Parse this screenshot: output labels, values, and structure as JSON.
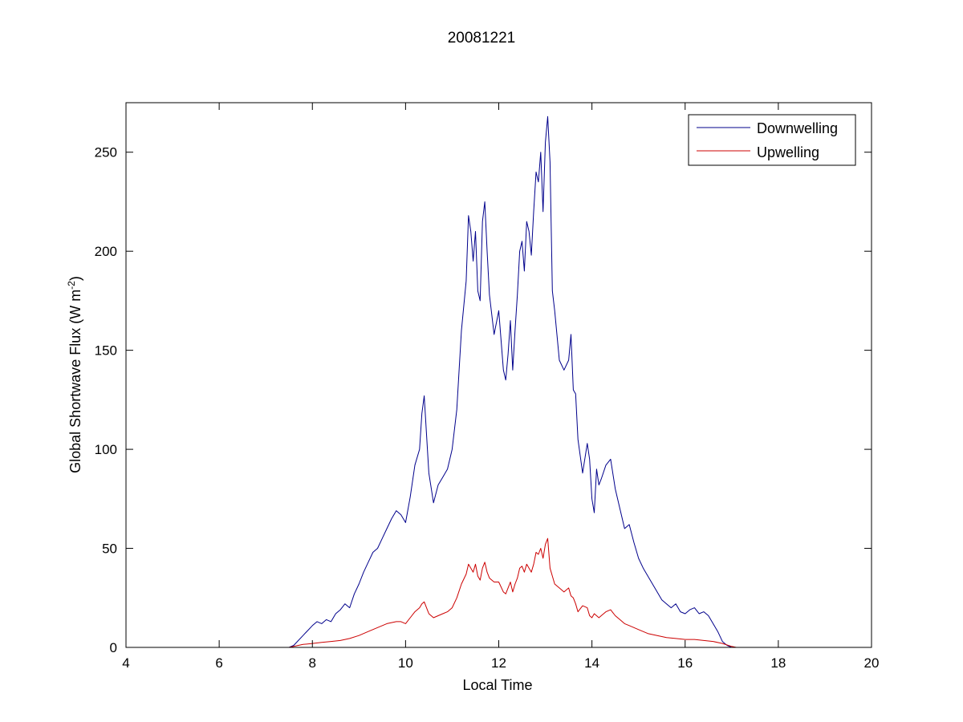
{
  "chart_data": {
    "type": "line",
    "title": "20081221",
    "xlabel": "Local Time",
    "ylabel": {
      "main": "Global Shortwave Flux (W m",
      "sup": "-2",
      "close": ")"
    },
    "xlim": [
      4,
      20
    ],
    "ylim": [
      0,
      275
    ],
    "xticks": [
      4,
      6,
      8,
      10,
      12,
      14,
      16,
      18,
      20
    ],
    "yticks": [
      0,
      50,
      100,
      150,
      200,
      250
    ],
    "grid": false,
    "legend_position": "top-right",
    "series": [
      {
        "name": "Downwelling",
        "color": "#00008b",
        "x": [
          4.0,
          7.3,
          7.5,
          7.6,
          7.8,
          8.0,
          8.1,
          8.2,
          8.3,
          8.4,
          8.5,
          8.6,
          8.7,
          8.8,
          8.9,
          9.0,
          9.1,
          9.2,
          9.3,
          9.4,
          9.5,
          9.6,
          9.7,
          9.8,
          9.9,
          10.0,
          10.1,
          10.2,
          10.3,
          10.35,
          10.4,
          10.5,
          10.6,
          10.7,
          10.8,
          10.9,
          11.0,
          11.1,
          11.2,
          11.3,
          11.35,
          11.4,
          11.45,
          11.5,
          11.55,
          11.6,
          11.65,
          11.7,
          11.75,
          11.8,
          11.9,
          12.0,
          12.1,
          12.15,
          12.2,
          12.25,
          12.3,
          12.35,
          12.4,
          12.45,
          12.5,
          12.55,
          12.6,
          12.65,
          12.7,
          12.75,
          12.8,
          12.85,
          12.9,
          12.95,
          13.0,
          13.05,
          13.1,
          13.15,
          13.2,
          13.3,
          13.4,
          13.5,
          13.55,
          13.6,
          13.65,
          13.7,
          13.8,
          13.9,
          13.95,
          14.0,
          14.05,
          14.1,
          14.15,
          14.2,
          14.3,
          14.4,
          14.5,
          14.6,
          14.7,
          14.8,
          14.9,
          15.0,
          15.1,
          15.2,
          15.3,
          15.4,
          15.5,
          15.6,
          15.7,
          15.8,
          15.9,
          16.0,
          16.1,
          16.2,
          16.3,
          16.4,
          16.5,
          16.6,
          16.7,
          16.8,
          16.9,
          17.0,
          17.1,
          19.5
        ],
        "y": [
          0,
          0,
          0,
          1,
          6,
          11,
          13,
          12,
          14,
          13,
          17,
          19,
          22,
          20,
          27,
          32,
          38,
          43,
          48,
          50,
          55,
          60,
          65,
          69,
          67,
          63,
          76,
          92,
          100,
          118,
          127,
          88,
          73,
          82,
          86,
          90,
          100,
          120,
          160,
          185,
          218,
          210,
          195,
          210,
          180,
          175,
          215,
          225,
          200,
          178,
          158,
          170,
          140,
          135,
          148,
          165,
          140,
          160,
          178,
          200,
          205,
          190,
          215,
          210,
          198,
          220,
          240,
          235,
          250,
          220,
          255,
          268,
          245,
          180,
          170,
          145,
          140,
          145,
          158,
          130,
          128,
          105,
          88,
          103,
          95,
          75,
          68,
          90,
          82,
          85,
          92,
          95,
          80,
          70,
          60,
          62,
          53,
          45,
          40,
          36,
          32,
          28,
          24,
          22,
          20,
          22,
          18,
          17,
          19,
          20,
          17,
          18,
          16,
          12,
          8,
          3,
          1,
          0,
          0,
          0
        ]
      },
      {
        "name": "Upwelling",
        "color": "#cc0000",
        "x": [
          4.0,
          7.3,
          7.5,
          7.6,
          7.8,
          8.0,
          8.2,
          8.4,
          8.6,
          8.8,
          9.0,
          9.2,
          9.4,
          9.6,
          9.8,
          9.9,
          10.0,
          10.1,
          10.2,
          10.3,
          10.35,
          10.4,
          10.5,
          10.6,
          10.7,
          10.8,
          10.9,
          11.0,
          11.1,
          11.2,
          11.3,
          11.35,
          11.4,
          11.45,
          11.5,
          11.55,
          11.6,
          11.65,
          11.7,
          11.75,
          11.8,
          11.9,
          12.0,
          12.1,
          12.15,
          12.2,
          12.25,
          12.3,
          12.35,
          12.4,
          12.45,
          12.5,
          12.55,
          12.6,
          12.65,
          12.7,
          12.75,
          12.8,
          12.85,
          12.9,
          12.95,
          13.0,
          13.05,
          13.1,
          13.15,
          13.2,
          13.3,
          13.4,
          13.5,
          13.55,
          13.6,
          13.65,
          13.7,
          13.8,
          13.9,
          13.95,
          14.0,
          14.05,
          14.1,
          14.15,
          14.2,
          14.3,
          14.4,
          14.5,
          14.6,
          14.7,
          14.8,
          14.9,
          15.0,
          15.2,
          15.4,
          15.6,
          15.8,
          16.0,
          16.2,
          16.4,
          16.6,
          16.8,
          17.0,
          17.1,
          19.5
        ],
        "y": [
          0,
          0,
          0,
          0.5,
          1.5,
          2,
          2.5,
          3,
          3.5,
          4.5,
          6,
          8,
          10,
          12,
          13,
          13,
          12,
          15,
          18,
          20,
          22,
          23,
          17,
          15,
          16,
          17,
          18,
          20,
          25,
          32,
          37,
          42,
          40,
          38,
          42,
          36,
          34,
          40,
          43,
          38,
          35,
          33,
          33,
          28,
          27,
          30,
          33,
          28,
          32,
          35,
          40,
          41,
          38,
          42,
          40,
          38,
          42,
          48,
          47,
          50,
          45,
          52,
          55,
          40,
          36,
          32,
          30,
          28,
          30,
          26,
          25,
          22,
          18,
          21,
          20,
          16,
          15,
          17,
          16,
          15,
          16,
          18,
          19,
          16,
          14,
          12,
          11,
          10,
          9,
          7,
          6,
          5,
          4.5,
          4,
          4,
          3.5,
          3,
          2,
          0.5,
          0,
          0
        ]
      }
    ]
  }
}
